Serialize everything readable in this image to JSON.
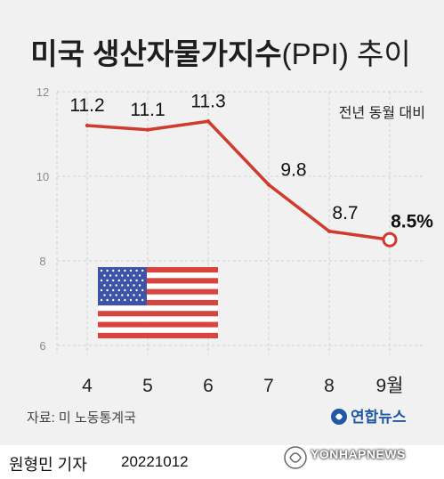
{
  "title": {
    "main": "미국 생산자물가지수",
    "paren": "(PPI)",
    "suffix": " 추이"
  },
  "subtitle": "전년 동월 대비",
  "source": "자료: 미 노동통계국",
  "brand": "연합뉴스",
  "watermark": "YONHAPNEWS",
  "reporter": "원형민 기자",
  "date": "20221012",
  "colors": {
    "line": "#cf3b2c",
    "card": "#f1f1f1",
    "grid": "#cfcfcf",
    "flag_red": "#d8453e",
    "flag_blue": "#3d53a8"
  },
  "chart_data": {
    "type": "line",
    "categories": [
      "4",
      "5",
      "6",
      "7",
      "8",
      "9월"
    ],
    "values": [
      11.2,
      11.1,
      11.3,
      9.8,
      8.7,
      8.5
    ],
    "labels": [
      "11.2",
      "11.1",
      "11.3",
      "9.8",
      "8.7",
      "8.5%"
    ],
    "ylim": [
      6,
      12
    ],
    "yticks": [
      "6",
      "8",
      "10",
      "12"
    ],
    "grid": true,
    "highlight_last": true
  }
}
